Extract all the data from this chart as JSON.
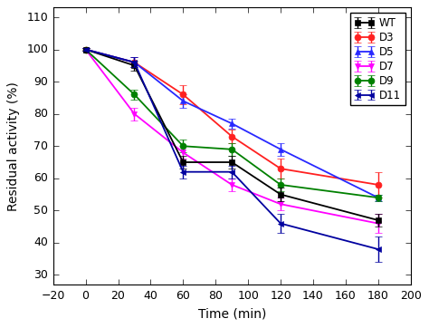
{
  "x": [
    0,
    30,
    60,
    90,
    120,
    180
  ],
  "series": {
    "WT": {
      "y": [
        100,
        95,
        65,
        65,
        55,
        47
      ],
      "yerr": [
        0.5,
        1.5,
        2,
        2,
        2,
        2
      ],
      "color": "#000000",
      "marker": "s",
      "zorder": 4
    },
    "D3": {
      "y": [
        100,
        96,
        86,
        73,
        63,
        58
      ],
      "yerr": [
        0.5,
        1.5,
        3,
        2,
        3,
        4
      ],
      "color": "#ff2020",
      "marker": "o",
      "zorder": 3
    },
    "D5": {
      "y": [
        100,
        96,
        84,
        77,
        69,
        54
      ],
      "yerr": [
        0.5,
        1.5,
        2,
        1.5,
        2,
        1
      ],
      "color": "#2828ff",
      "marker": "^",
      "zorder": 3
    },
    "D7": {
      "y": [
        100,
        80,
        68,
        58,
        52,
        46
      ],
      "yerr": [
        0.5,
        2,
        2,
        2,
        2,
        3
      ],
      "color": "#ff00ff",
      "marker": "v",
      "zorder": 3
    },
    "D9": {
      "y": [
        100,
        86,
        70,
        69,
        58,
        54
      ],
      "yerr": [
        0.5,
        1.5,
        2,
        2,
        2,
        1
      ],
      "color": "#008000",
      "marker": "o",
      "zorder": 3
    },
    "D11": {
      "y": [
        100,
        96,
        62,
        62,
        46,
        38
      ],
      "yerr": [
        0.5,
        1.5,
        2,
        2,
        3,
        4
      ],
      "color": "#00009f",
      "marker": "<",
      "zorder": 5
    }
  },
  "xlabel": "Time (min)",
  "ylabel": "Residual activity (%)",
  "xlim": [
    -20,
    200
  ],
  "ylim": [
    27,
    113
  ],
  "xticks": [
    -20,
    0,
    20,
    40,
    60,
    80,
    100,
    120,
    140,
    160,
    180,
    200
  ],
  "yticks": [
    30,
    40,
    50,
    60,
    70,
    80,
    90,
    100,
    110
  ],
  "legend_order": [
    "WT",
    "D3",
    "D5",
    "D7",
    "D9",
    "D11"
  ],
  "markersize": 5,
  "linewidth": 1.3,
  "capsize": 3,
  "elinewidth": 1.0,
  "figsize": [
    4.74,
    3.62
  ],
  "dpi": 100
}
